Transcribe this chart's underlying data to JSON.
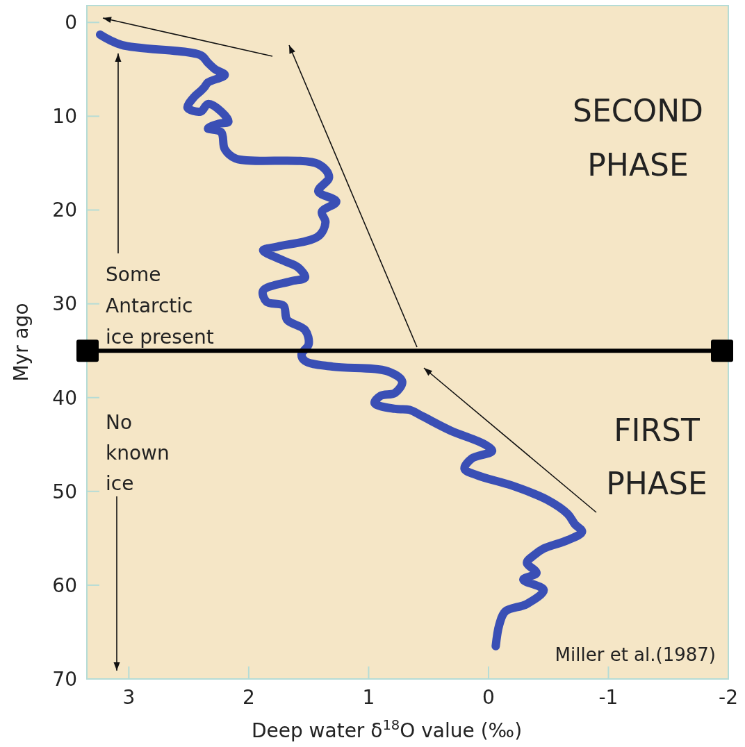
{
  "chart_data": {
    "type": "line",
    "xlabel": "Deep water δ$^{18}$O value (‰)",
    "ylabel": "Myr ago",
    "xlim": [
      3.35,
      -2
    ],
    "ylim": [
      70,
      -1.8
    ],
    "xticks": [
      3,
      2,
      1,
      0,
      -1,
      -2
    ],
    "yticks": [
      0,
      10,
      20,
      30,
      40,
      50,
      60,
      70
    ],
    "grid": false,
    "series": [
      {
        "color": "#3a4fb5",
        "x": [
          3.24,
          3.06,
          2.4,
          2.34,
          2.28,
          2.2,
          2.34,
          2.37,
          2.4,
          2.46,
          2.51,
          2.4,
          2.34,
          2.23,
          2.17,
          2.25,
          2.34,
          2.23,
          2.2,
          2.11,
          1.42,
          1.33,
          1.42,
          1.27,
          1.39,
          1.36,
          1.42,
          1.76,
          1.88,
          1.71,
          1.59,
          1.53,
          1.65,
          1.88,
          1.85,
          1.71,
          1.68,
          1.53,
          1.5,
          1.56,
          1.53,
          1.3,
          0.84,
          0.72,
          0.78,
          0.9,
          0.95,
          0.78,
          0.66,
          0.55,
          0.32,
          0.03,
          -0.03,
          0.14,
          0.2,
          0.09,
          -0.2,
          -0.49,
          -0.66,
          -0.72,
          -0.78,
          -0.66,
          -0.46,
          -0.38,
          -0.32,
          -0.4,
          -0.29,
          -0.46,
          -0.32,
          -0.14,
          -0.09,
          -0.06
        ],
        "values": [
          1.3,
          2.4,
          3.5,
          4.3,
          5.0,
          5.6,
          6.4,
          6.9,
          7.3,
          8.0,
          9.1,
          9.5,
          8.7,
          9.5,
          10.6,
          10.8,
          11.3,
          11.7,
          13.5,
          14.5,
          15.1,
          16.5,
          18.0,
          19.1,
          20.2,
          21.3,
          22.8,
          23.9,
          24.3,
          25.4,
          26.1,
          27.2,
          27.6,
          28.6,
          29.8,
          30.2,
          31.7,
          32.8,
          34.3,
          35.4,
          36.1,
          36.7,
          37.2,
          38.3,
          39.5,
          39.8,
          40.6,
          41.2,
          41.3,
          42.0,
          43.5,
          45.0,
          45.7,
          46.5,
          47.6,
          48.3,
          49.4,
          50.9,
          52.4,
          53.5,
          54.3,
          55.2,
          56.1,
          56.8,
          57.6,
          58.7,
          59.4,
          60.5,
          62.0,
          62.8,
          64.2,
          66.5
        ]
      }
    ],
    "ref_lines": [
      {
        "axis": "y",
        "value": 35,
        "color": "#000000"
      }
    ],
    "annotations": [
      "SECOND\nPHASE",
      "FIRST\nPHASE",
      "Some\nAntarctic\nice present",
      "No\nknown\nice",
      "Miller et al.(1987)"
    ]
  }
}
